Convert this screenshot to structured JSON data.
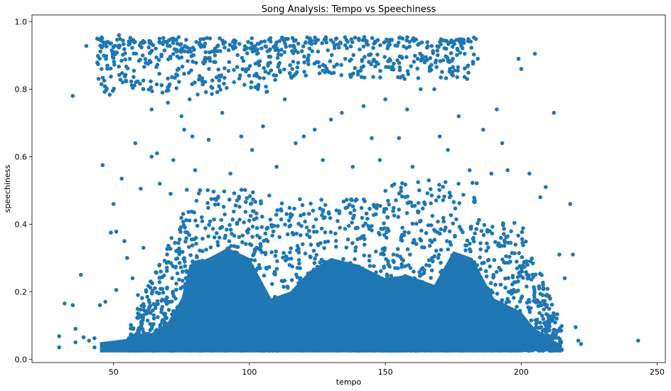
{
  "chart_data": {
    "type": "scatter",
    "title": "Song Analysis: Tempo vs Speechiness",
    "xlabel": "tempo",
    "ylabel": "speechiness",
    "xlim": [
      20,
      253
    ],
    "ylim": [
      -0.01,
      1.02
    ],
    "grid": false,
    "x_ticks": [
      50,
      100,
      150,
      200,
      250
    ],
    "y_ticks": [
      0.0,
      0.2,
      0.4,
      0.6,
      0.8,
      1.0
    ],
    "x_tick_labels": [
      "50",
      "100",
      "150",
      "200",
      "250"
    ],
    "y_tick_labels": [
      "0.0",
      "0.2",
      "0.4",
      "0.6",
      "0.8",
      "1.0"
    ],
    "marker_color": "#1f77b4",
    "series": [
      {
        "points": [
          [
            30,
            0.068
          ],
          [
            30,
            0.035
          ],
          [
            32,
            0.165
          ],
          [
            35,
            0.78
          ],
          [
            35,
            0.16
          ],
          [
            36,
            0.05
          ],
          [
            36,
            0.09
          ],
          [
            38,
            0.25
          ],
          [
            39,
            0.065
          ],
          [
            40,
            0.928
          ],
          [
            41,
            0.055
          ],
          [
            43,
            0.062
          ],
          [
            43,
            0.035
          ],
          [
            44,
            0.95
          ],
          [
            45,
            0.16
          ],
          [
            46,
            0.575
          ],
          [
            46,
            0.045
          ],
          [
            47,
            0.17
          ],
          [
            48,
            0.94
          ],
          [
            49,
            0.375
          ],
          [
            50,
            0.46
          ],
          [
            50,
            0.925
          ],
          [
            51,
            0.378
          ],
          [
            51,
            0.205
          ],
          [
            52,
            0.96
          ],
          [
            53,
            0.535
          ],
          [
            54,
            0.35
          ],
          [
            55,
            0.3
          ],
          [
            56,
            0.89
          ],
          [
            57,
            0.24
          ],
          [
            58,
            0.64
          ],
          [
            59,
            0.19
          ],
          [
            60,
            0.505
          ],
          [
            61,
            0.8
          ],
          [
            61,
            0.33
          ],
          [
            62,
            0.2
          ],
          [
            64,
            0.74
          ],
          [
            64,
            0.6
          ],
          [
            66,
            0.61
          ],
          [
            67,
            0.52
          ],
          [
            68,
            0.79
          ],
          [
            70,
            0.76
          ],
          [
            71,
            0.49
          ],
          [
            72,
            0.59
          ],
          [
            75,
            0.72
          ],
          [
            76,
            0.68
          ],
          [
            78,
            0.77
          ],
          [
            79,
            0.66
          ],
          [
            80,
            0.56
          ],
          [
            85,
            0.65
          ],
          [
            90,
            0.73
          ],
          [
            93,
            0.55
          ],
          [
            97,
            0.66
          ],
          [
            101,
            0.62
          ],
          [
            105,
            0.69
          ],
          [
            110,
            0.57
          ],
          [
            113,
            0.77
          ],
          [
            117,
            0.64
          ],
          [
            120,
            0.66
          ],
          [
            124,
            0.68
          ],
          [
            127,
            0.59
          ],
          [
            130,
            0.71
          ],
          [
            134,
            0.73
          ],
          [
            138,
            0.57
          ],
          [
            142,
            0.75
          ],
          [
            145,
            0.655
          ],
          [
            148,
            0.59
          ],
          [
            150,
            0.77
          ],
          [
            155,
            0.655
          ],
          [
            158,
            0.74
          ],
          [
            160,
            0.57
          ],
          [
            163,
            0.8
          ],
          [
            166,
            0.53
          ],
          [
            168,
            0.8
          ],
          [
            170,
            0.66
          ],
          [
            173,
            0.62
          ],
          [
            177,
            0.72
          ],
          [
            181,
            0.56
          ],
          [
            184,
            0.89
          ],
          [
            186,
            0.68
          ],
          [
            189,
            0.55
          ],
          [
            191,
            0.74
          ],
          [
            193,
            0.64
          ],
          [
            195,
            0.56
          ],
          [
            199,
            0.89
          ],
          [
            200,
            0.86
          ],
          [
            203,
            0.55
          ],
          [
            205,
            0.905
          ],
          [
            207,
            0.48
          ],
          [
            209,
            0.51
          ],
          [
            212,
            0.73
          ],
          [
            214,
            0.31
          ],
          [
            216,
            0.24
          ],
          [
            218,
            0.46
          ],
          [
            219,
            0.31
          ],
          [
            220,
            0.095
          ],
          [
            221,
            0.055
          ],
          [
            222,
            0.045
          ],
          [
            243,
            0.055
          ]
        ]
      }
    ]
  }
}
